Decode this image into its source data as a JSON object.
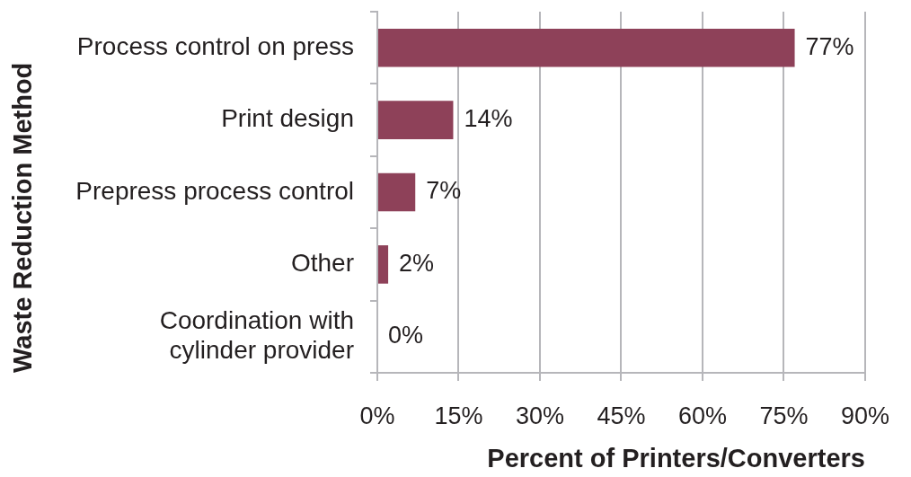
{
  "chart_data": {
    "type": "bar",
    "orientation": "horizontal",
    "categories": [
      "Process control on press",
      "Print design",
      "Prepress process control",
      "Other",
      "Coordination with cylinder provider"
    ],
    "values": [
      77,
      14,
      7,
      2,
      0
    ],
    "color": "#8e4159",
    "value_labels": [
      "77%",
      "14%",
      "7%",
      "2%",
      "0%"
    ],
    "xlabel": "Percent of Printers/Converters",
    "ylabel": "Waste Reduction Method",
    "xlim": [
      0,
      90
    ],
    "xticks": [
      {
        "value": 0,
        "label": "0%"
      },
      {
        "value": 15,
        "label": "15%"
      },
      {
        "value": 30,
        "label": "30%"
      },
      {
        "value": 45,
        "label": "45%"
      },
      {
        "value": 60,
        "label": "60%"
      },
      {
        "value": 75,
        "label": "75%"
      },
      {
        "value": 90,
        "label": "90%"
      }
    ],
    "grid": "x"
  }
}
